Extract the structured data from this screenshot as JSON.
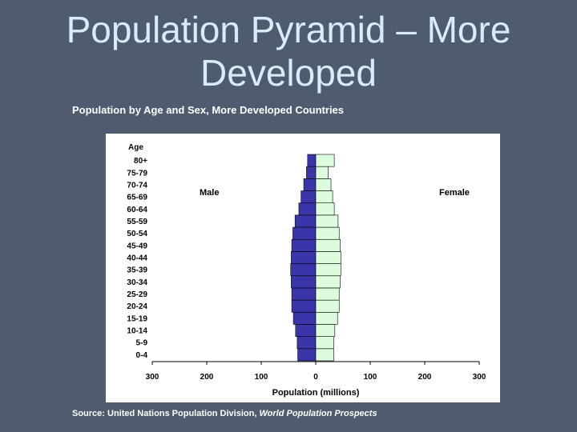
{
  "slide": {
    "title_line1": "Population Pyramid – More",
    "title_line2": "Developed",
    "subtitle": "Population by Age and Sex, More Developed Countries",
    "source_prefix": "Source: United Nations Population Division, ",
    "source_title": "World Population Prospects"
  },
  "colors": {
    "background": "#4f5b6e",
    "title": "#d6ecf7",
    "male": "#3a35a8",
    "female": "#ddfbdd"
  },
  "chart_data": {
    "type": "bar",
    "orientation": "horizontal-pyramid",
    "y_title": "Age",
    "xlabel": "Population (millions)",
    "xlim": [
      -300,
      300
    ],
    "x_ticks": [
      -300,
      -200,
      -100,
      0,
      100,
      200,
      300
    ],
    "x_tick_labels": [
      "300",
      "200",
      "100",
      "0",
      "100",
      "200",
      "300"
    ],
    "categories": [
      "0-4",
      "5-9",
      "10-14",
      "15-19",
      "20-24",
      "25-29",
      "30-34",
      "35-39",
      "40-44",
      "45-49",
      "50-54",
      "55-59",
      "60-64",
      "65-69",
      "70-74",
      "75-79",
      "80+"
    ],
    "series": [
      {
        "name": "Male",
        "side": "left",
        "values": [
          33,
          34,
          37,
          41,
          44,
          44,
          45,
          46,
          45,
          44,
          42,
          38,
          31,
          27,
          22,
          17,
          15
        ]
      },
      {
        "name": "Female",
        "side": "right",
        "values": [
          33,
          33,
          35,
          40,
          43,
          43,
          45,
          46,
          46,
          45,
          43,
          41,
          34,
          31,
          28,
          23,
          34
        ]
      }
    ],
    "grid": false
  }
}
